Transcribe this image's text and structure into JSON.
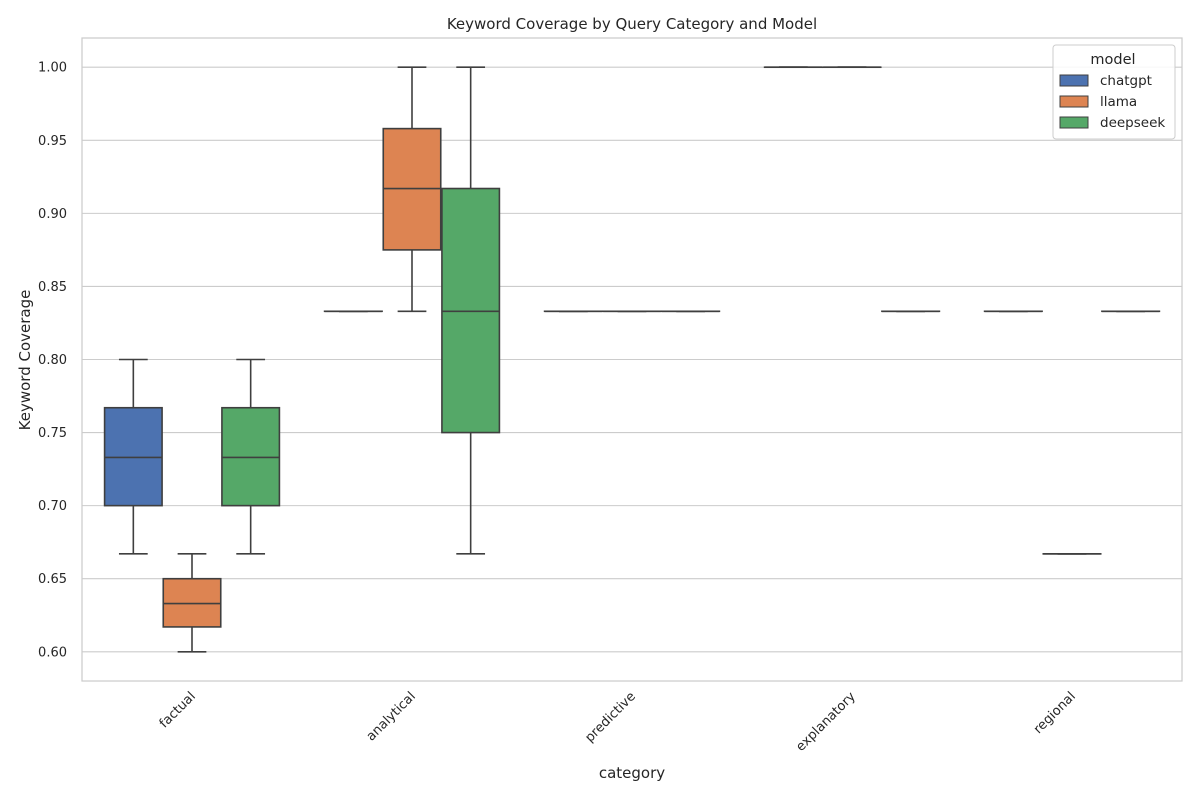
{
  "chart_data": {
    "type": "box",
    "title": "Keyword Coverage by Query Category and Model",
    "xlabel": "category",
    "ylabel": "Keyword Coverage",
    "categories": [
      "factual",
      "analytical",
      "predictive",
      "explanatory",
      "regional"
    ],
    "ylim": [
      0.58,
      1.02
    ],
    "yticks": [
      0.6,
      0.65,
      0.7,
      0.75,
      0.8,
      0.85,
      0.9,
      0.95,
      1.0
    ],
    "grid": true,
    "legend": {
      "title": "model",
      "placement": "top-right"
    },
    "series": [
      {
        "name": "chatgpt",
        "color": "#4c72b0",
        "boxes": [
          {
            "category": "factual",
            "min": 0.667,
            "q1": 0.7,
            "median": 0.733,
            "q3": 0.767,
            "max": 0.8
          },
          {
            "category": "analytical",
            "min": 0.833,
            "q1": 0.833,
            "median": 0.833,
            "q3": 0.833,
            "max": 0.833
          },
          {
            "category": "predictive",
            "min": 0.833,
            "q1": 0.833,
            "median": 0.833,
            "q3": 0.833,
            "max": 0.833
          },
          {
            "category": "explanatory",
            "min": 1.0,
            "q1": 1.0,
            "median": 1.0,
            "q3": 1.0,
            "max": 1.0
          },
          {
            "category": "regional",
            "min": 0.833,
            "q1": 0.833,
            "median": 0.833,
            "q3": 0.833,
            "max": 0.833
          }
        ]
      },
      {
        "name": "llama",
        "color": "#dd8452",
        "boxes": [
          {
            "category": "factual",
            "min": 0.6,
            "q1": 0.617,
            "median": 0.633,
            "q3": 0.65,
            "max": 0.667
          },
          {
            "category": "analytical",
            "min": 0.833,
            "q1": 0.875,
            "median": 0.917,
            "q3": 0.958,
            "max": 1.0
          },
          {
            "category": "predictive",
            "min": 0.833,
            "q1": 0.833,
            "median": 0.833,
            "q3": 0.833,
            "max": 0.833
          },
          {
            "category": "explanatory",
            "min": 1.0,
            "q1": 1.0,
            "median": 1.0,
            "q3": 1.0,
            "max": 1.0
          },
          {
            "category": "regional",
            "min": 0.667,
            "q1": 0.667,
            "median": 0.667,
            "q3": 0.667,
            "max": 0.667
          }
        ]
      },
      {
        "name": "deepseek",
        "color": "#55a868",
        "boxes": [
          {
            "category": "factual",
            "min": 0.667,
            "q1": 0.7,
            "median": 0.733,
            "q3": 0.767,
            "max": 0.8
          },
          {
            "category": "analytical",
            "min": 0.667,
            "q1": 0.75,
            "median": 0.833,
            "q3": 0.917,
            "max": 1.0
          },
          {
            "category": "predictive",
            "min": 0.833,
            "q1": 0.833,
            "median": 0.833,
            "q3": 0.833,
            "max": 0.833
          },
          {
            "category": "explanatory",
            "min": 0.833,
            "q1": 0.833,
            "median": 0.833,
            "q3": 0.833,
            "max": 0.833
          },
          {
            "category": "regional",
            "min": 0.833,
            "q1": 0.833,
            "median": 0.833,
            "q3": 0.833,
            "max": 0.833
          }
        ]
      }
    ]
  }
}
